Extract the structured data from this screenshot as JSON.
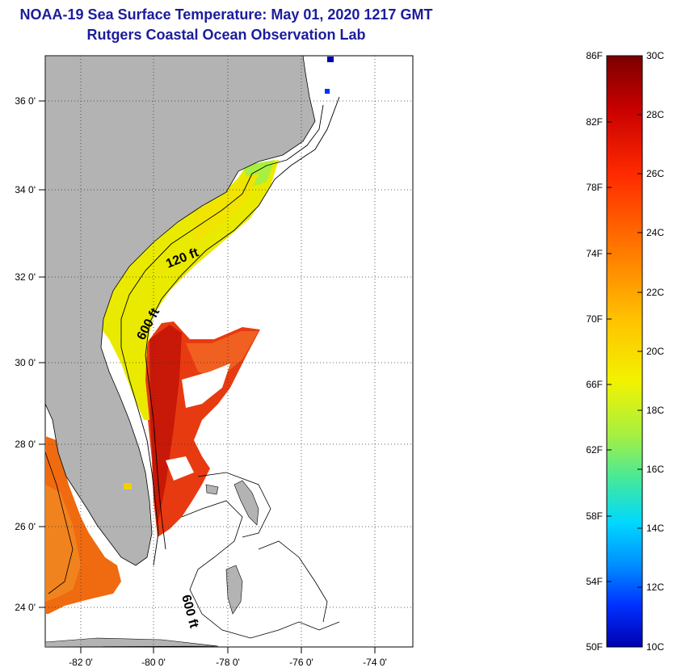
{
  "title": "NOAA-19 Sea Surface Temperature:  May 01, 2020 1217 GMT",
  "subtitle": "Rutgers Coastal Ocean Observation Lab",
  "map": {
    "lat_labels": [
      "36 0'",
      "34 0'",
      "32 0'",
      "30 0'",
      "28 0'",
      "26 0'",
      "24 0'"
    ],
    "lon_labels": [
      "-82 0'",
      "-80 0'",
      "-78 0'",
      "-76 0'",
      "-74 0'"
    ],
    "isobath_labels": [
      "120 ft",
      "600 ft",
      "600 ft"
    ],
    "colors": {
      "land": "#b3b3b3",
      "cloud": "#ffffff",
      "grid": "#333333"
    }
  },
  "colorbar": {
    "fahrenheit": [
      "86F",
      "82F",
      "78F",
      "74F",
      "70F",
      "66F",
      "62F",
      "58F",
      "54F",
      "50F"
    ],
    "celsius": [
      "30C",
      "28C",
      "26C",
      "24C",
      "22C",
      "20C",
      "18C",
      "16C",
      "14C",
      "12C",
      "10C"
    ],
    "gradient": [
      "#7a0000",
      "#c80000",
      "#ff2a00",
      "#ff7a00",
      "#ffc400",
      "#f2f200",
      "#a8f040",
      "#40e8a0",
      "#00d8ff",
      "#0090ff",
      "#0030ff",
      "#0000b0"
    ]
  }
}
